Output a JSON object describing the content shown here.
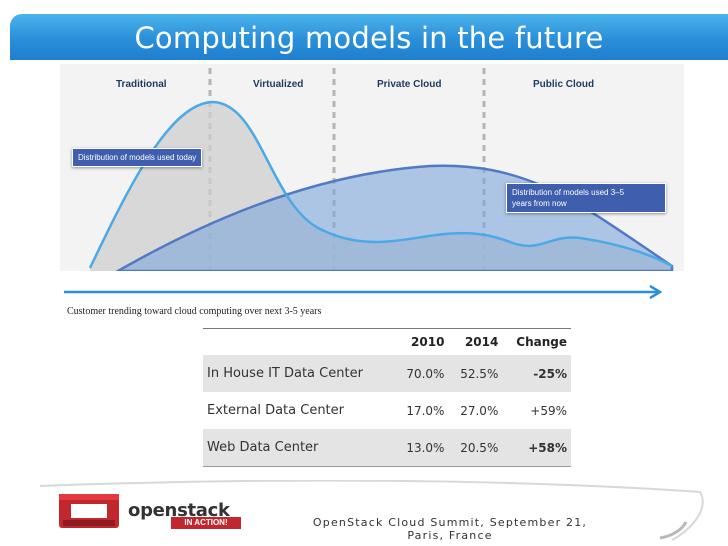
{
  "slide": {
    "title": "Computing models in the future",
    "zones": [
      "Traditional",
      "Virtualized",
      "Private Cloud",
      "Public Cloud"
    ],
    "callout_today": "Distribution of models used today",
    "callout_future_line1": "Distribution of models used 3–5",
    "callout_future_line2": "years from now",
    "trend_caption": "Customer trending toward cloud computing over next 3-5 years"
  },
  "table": {
    "headers": [
      "",
      "2010",
      "2014",
      "Change"
    ],
    "rows": [
      {
        "label": "In House IT Data Center",
        "v2010": "70.0%",
        "v2014": "52.5%",
        "change": "-25%"
      },
      {
        "label": "External Data Center",
        "v2010": "17.0%",
        "v2014": "27.0%",
        "change": "+59%"
      },
      {
        "label": "Web Data Center",
        "v2010": "13.0%",
        "v2014": "20.5%",
        "change": "+58%"
      }
    ]
  },
  "footer": {
    "logo_name": "openstack",
    "logo_tag": "IN ACTION!",
    "event_line1": "OpenStack Cloud Summit, September 21,",
    "event_line2": "Paris, France"
  },
  "colors": {
    "title_bar": "#2a8fd8",
    "callout": "#3f5fae",
    "negative": "#b1276a",
    "logo_red": "#c1282d"
  }
}
